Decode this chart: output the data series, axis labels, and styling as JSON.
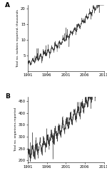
{
  "title_A": "A",
  "title_B": "B",
  "ylabel_A": "Total no. isolates reported, thousands",
  "ylabel_B": "Total no. organisms reported",
  "xtick_labels": [
    "1991",
    "1996",
    "2001",
    "2006",
    "2011"
  ],
  "ylim_A": [
    0,
    21
  ],
  "ylim_B": [
    190,
    470
  ],
  "yticks_A": [
    5,
    10,
    15,
    20
  ],
  "yticks_B": [
    200,
    250,
    300,
    350,
    400,
    450
  ],
  "line_color": "#222222",
  "background_color": "#ffffff",
  "seed": 42,
  "figsize": [
    1.5,
    2.43
  ],
  "dpi": 100
}
